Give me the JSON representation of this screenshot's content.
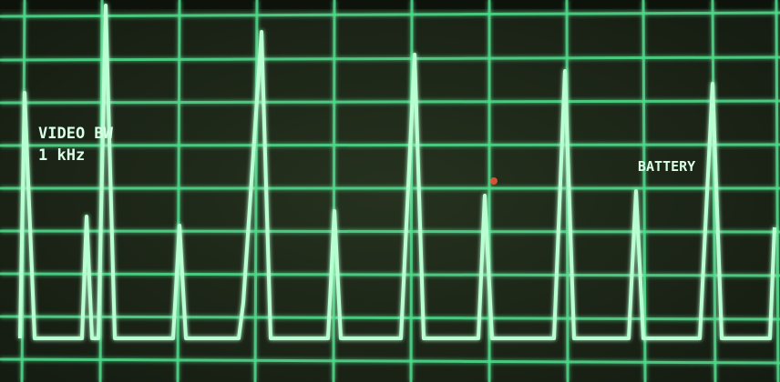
{
  "screen": {
    "video_bw_label": "VIDEO BW",
    "video_bw_value": "1 kHz",
    "battery": "BATTERY"
  }
}
